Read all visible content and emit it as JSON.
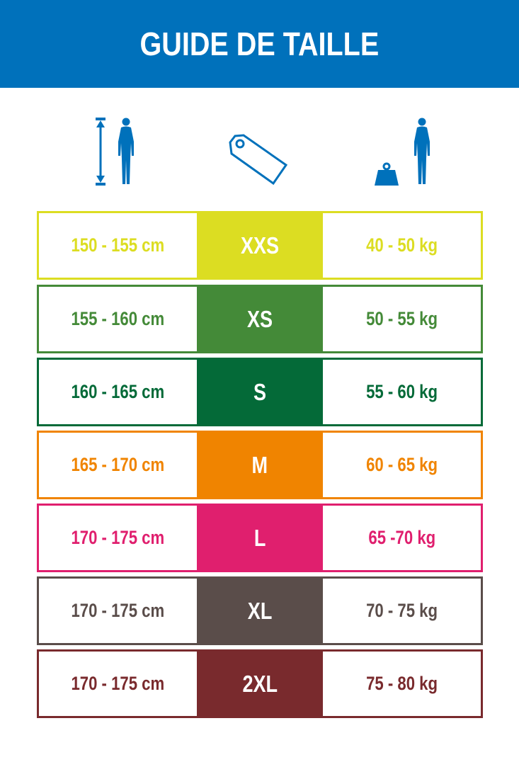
{
  "header": {
    "title": "GUIDE DE TAILLE",
    "color": "#0071bb"
  },
  "icons": [
    "height-person-icon",
    "size-tag-icon",
    "weight-person-icon"
  ],
  "rows": [
    {
      "height": "150 - 155 cm",
      "size": "XXS",
      "weight": "40 - 50 kg",
      "color": "#dcdd22"
    },
    {
      "height": "155 - 160 cm",
      "size": "XS",
      "weight": "50 - 55 kg",
      "color": "#448a38"
    },
    {
      "height": "160 - 165 cm",
      "size": "S",
      "weight": "55 - 60 kg",
      "color": "#046a38"
    },
    {
      "height": "165 - 170 cm",
      "size": "M",
      "weight": "60 - 65 kg",
      "color": "#f08400"
    },
    {
      "height": "170 - 175 cm",
      "size": "L",
      "weight": "65 -70 kg",
      "color": "#e01f6e"
    },
    {
      "height": "170 - 175 cm",
      "size": "XL",
      "weight": "70 - 75 kg",
      "color": "#5a4d4a"
    },
    {
      "height": "170 - 175 cm",
      "size": "2XL",
      "weight": "75 - 80 kg",
      "color": "#792a2d"
    }
  ]
}
